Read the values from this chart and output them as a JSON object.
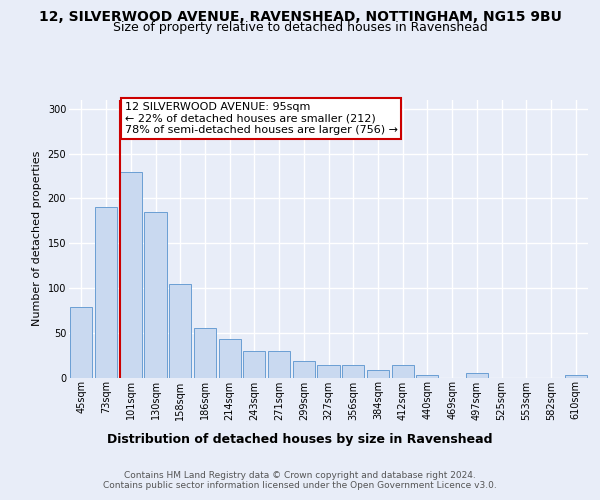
{
  "title_line1": "12, SILVERWOOD AVENUE, RAVENSHEAD, NOTTINGHAM, NG15 9BU",
  "title_line2": "Size of property relative to detached houses in Ravenshead",
  "xlabel": "Distribution of detached houses by size in Ravenshead",
  "ylabel": "Number of detached properties",
  "categories": [
    "45sqm",
    "73sqm",
    "101sqm",
    "130sqm",
    "158sqm",
    "186sqm",
    "214sqm",
    "243sqm",
    "271sqm",
    "299sqm",
    "327sqm",
    "356sqm",
    "384sqm",
    "412sqm",
    "440sqm",
    "469sqm",
    "497sqm",
    "525sqm",
    "553sqm",
    "582sqm",
    "610sqm"
  ],
  "values": [
    79,
    190,
    230,
    185,
    105,
    55,
    43,
    30,
    30,
    18,
    14,
    14,
    8,
    14,
    3,
    0,
    5,
    0,
    0,
    0,
    3
  ],
  "bar_color": "#c9d9f0",
  "bar_edge_color": "#6a9ed4",
  "vline_color": "#cc0000",
  "vline_x_index": 2,
  "annotation_text": "12 SILVERWOOD AVENUE: 95sqm\n← 22% of detached houses are smaller (212)\n78% of semi-detached houses are larger (756) →",
  "annotation_box_color": "#ffffff",
  "annotation_box_edge": "#cc0000",
  "footer_line1": "Contains HM Land Registry data © Crown copyright and database right 2024.",
  "footer_line2": "Contains public sector information licensed under the Open Government Licence v3.0.",
  "ylim": [
    0,
    310
  ],
  "yticks": [
    0,
    50,
    100,
    150,
    200,
    250,
    300
  ],
  "bg_color": "#e8edf8",
  "grid_color": "#ffffff",
  "title_fontsize": 10,
  "subtitle_fontsize": 9,
  "tick_fontsize": 7,
  "ylabel_fontsize": 8,
  "xlabel_fontsize": 9,
  "annotation_fontsize": 8,
  "footer_fontsize": 6.5
}
